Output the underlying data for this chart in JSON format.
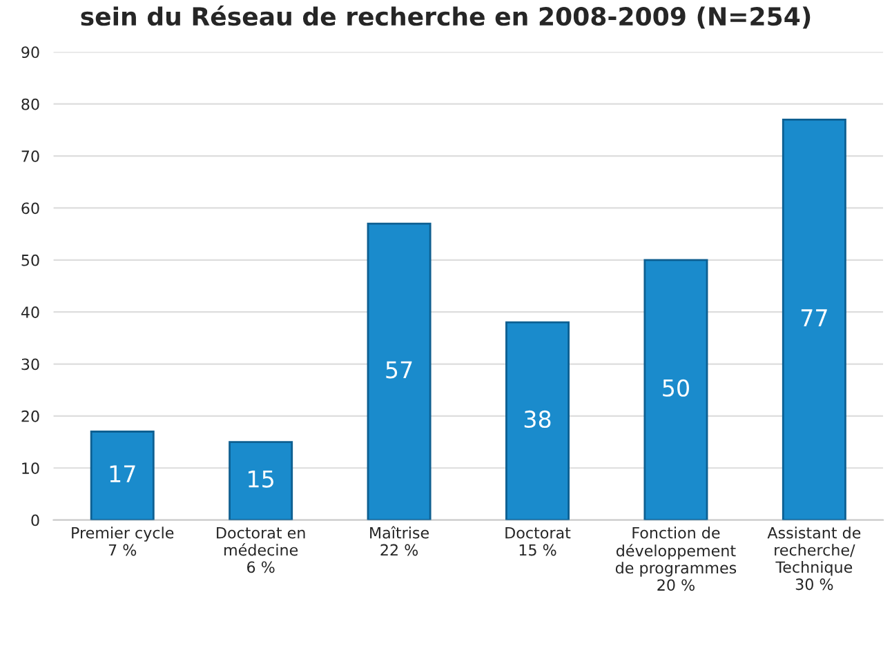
{
  "chart_data": {
    "type": "bar",
    "title": "sein du Réseau de recherche en 2008-2009 (N=254)",
    "categories": [
      "Premier cycle\n7 %",
      "Doctorat en\nmédecine\n6 %",
      "Maîtrise\n22 %",
      "Doctorat\n15 %",
      "Fonction de\ndéveloppement\nde programmes\n20 %",
      "Assistant de\nrecherche/\nTechnique\n30 %"
    ],
    "values": [
      17,
      15,
      57,
      38,
      50,
      77
    ],
    "color": "#1a8bcc",
    "ylim": [
      0,
      90
    ],
    "yticks": [
      0,
      10,
      20,
      30,
      40,
      50,
      60,
      70,
      80,
      90
    ],
    "grid": "y",
    "data_labels": true
  }
}
